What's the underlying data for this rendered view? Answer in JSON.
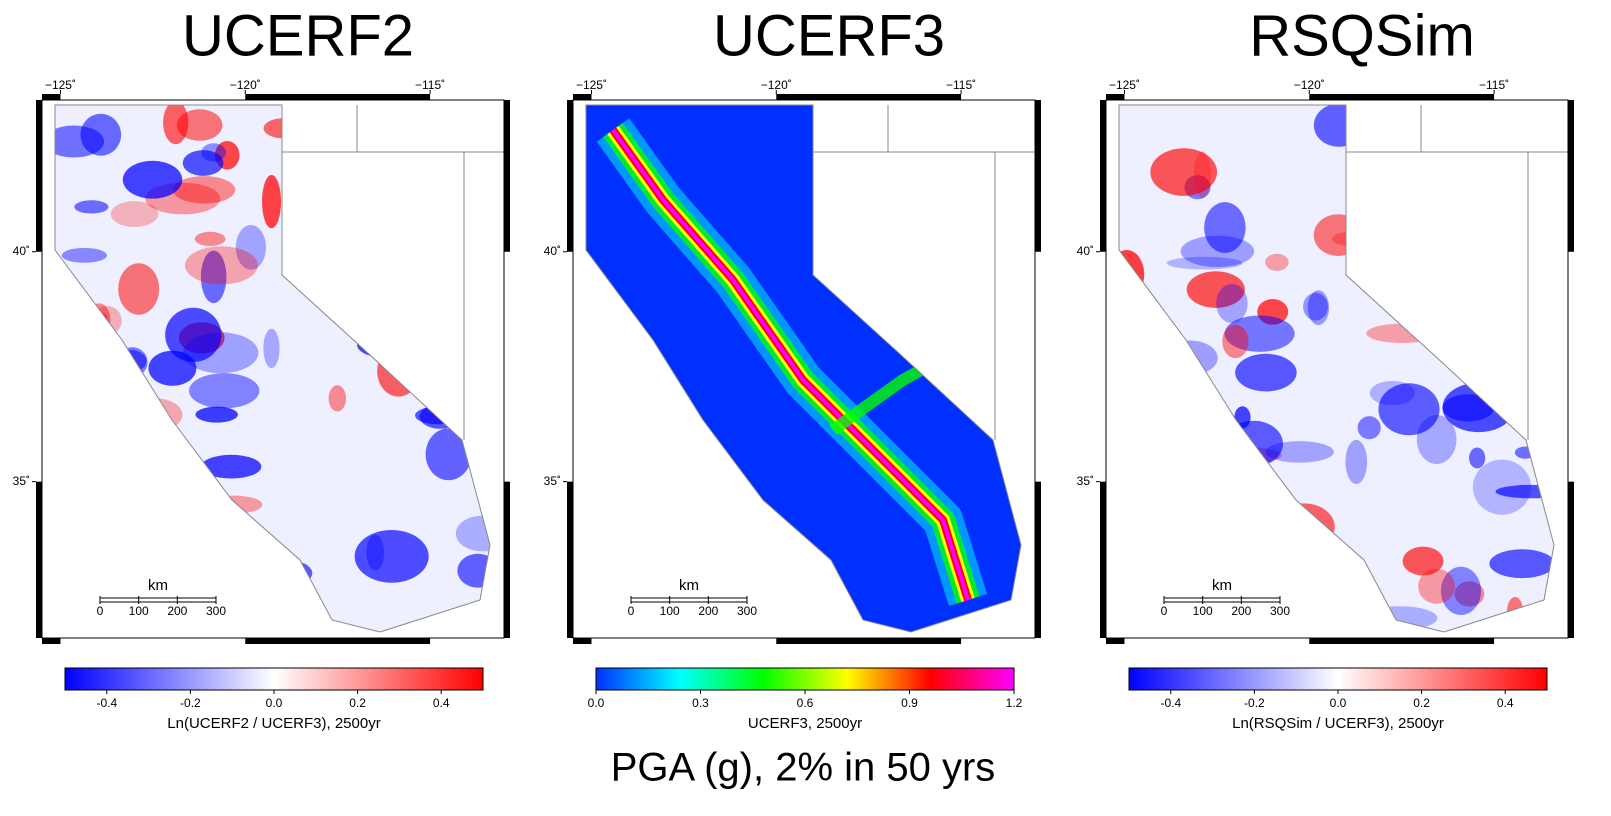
{
  "title": "PGA (g), 2% in 50 yrs",
  "panels": [
    {
      "title": "UCERF2",
      "style": "diverging",
      "lonlim": [
        -125.5,
        -113
      ],
      "latlim": [
        31.6,
        43.3
      ],
      "lonticks": [
        {
          "value": -125,
          "label": "−125˚"
        },
        {
          "value": -120,
          "label": "−120˚"
        },
        {
          "value": -115,
          "label": "−115˚"
        }
      ],
      "latticks": [
        {
          "value": 40,
          "label": "40˚"
        },
        {
          "value": 35,
          "label": "35˚"
        }
      ],
      "scale_label": "km",
      "scale_ticks": [
        0,
        100,
        200,
        300
      ],
      "colorbar": {
        "label": "Ln(UCERF2 / UCERF3), 2500yr",
        "lim": [
          -0.5,
          0.5
        ],
        "ticks": [
          -0.4,
          -0.2,
          {
            "value": 0,
            "label": "0.0"
          },
          0.2,
          0.4
        ],
        "colors": [
          "#0000ff",
          "#ffffff",
          "#ff0000"
        ]
      }
    },
    {
      "title": "UCERF3",
      "style": "rainbow",
      "lonlim": [
        -125.5,
        -113
      ],
      "latlim": [
        31.6,
        43.3
      ],
      "lonticks": [
        {
          "value": -125,
          "label": "−125˚"
        },
        {
          "value": -120,
          "label": "−120˚"
        },
        {
          "value": -115,
          "label": "−115˚"
        }
      ],
      "latticks": [
        {
          "value": 40,
          "label": "40˚"
        },
        {
          "value": 35,
          "label": "35˚"
        }
      ],
      "scale_label": "km",
      "scale_ticks": [
        0,
        100,
        200,
        300
      ],
      "colorbar": {
        "label": "UCERF3, 2500yr",
        "lim": [
          0,
          1.2
        ],
        "ticks": [
          {
            "value": 0,
            "label": "0.0"
          },
          0.3,
          0.6,
          0.9,
          1.2
        ],
        "colors": [
          "#0030ff",
          "#00ffff",
          "#00ff00",
          "#ffff00",
          "#ff0000",
          "#ff00ff"
        ]
      }
    },
    {
      "title": "RSQSim",
      "style": "diverging",
      "lonlim": [
        -125.5,
        -113
      ],
      "latlim": [
        31.6,
        43.3
      ],
      "lonticks": [
        {
          "value": -125,
          "label": "−125˚"
        },
        {
          "value": -120,
          "label": "−120˚"
        },
        {
          "value": -115,
          "label": "−115˚"
        }
      ],
      "latticks": [
        {
          "value": 40,
          "label": "40˚"
        },
        {
          "value": 35,
          "label": "35˚"
        }
      ],
      "scale_label": "km",
      "scale_ticks": [
        0,
        100,
        200,
        300
      ],
      "colorbar": {
        "label": "Ln(RSQSim / UCERF3), 2500yr",
        "lim": [
          -0.5,
          0.5
        ],
        "ticks": [
          -0.4,
          -0.2,
          {
            "value": 0,
            "label": "0.0"
          },
          0.2,
          0.4
        ],
        "colors": [
          "#0000ff",
          "#ffffff",
          "#ff0000"
        ]
      }
    }
  ]
}
